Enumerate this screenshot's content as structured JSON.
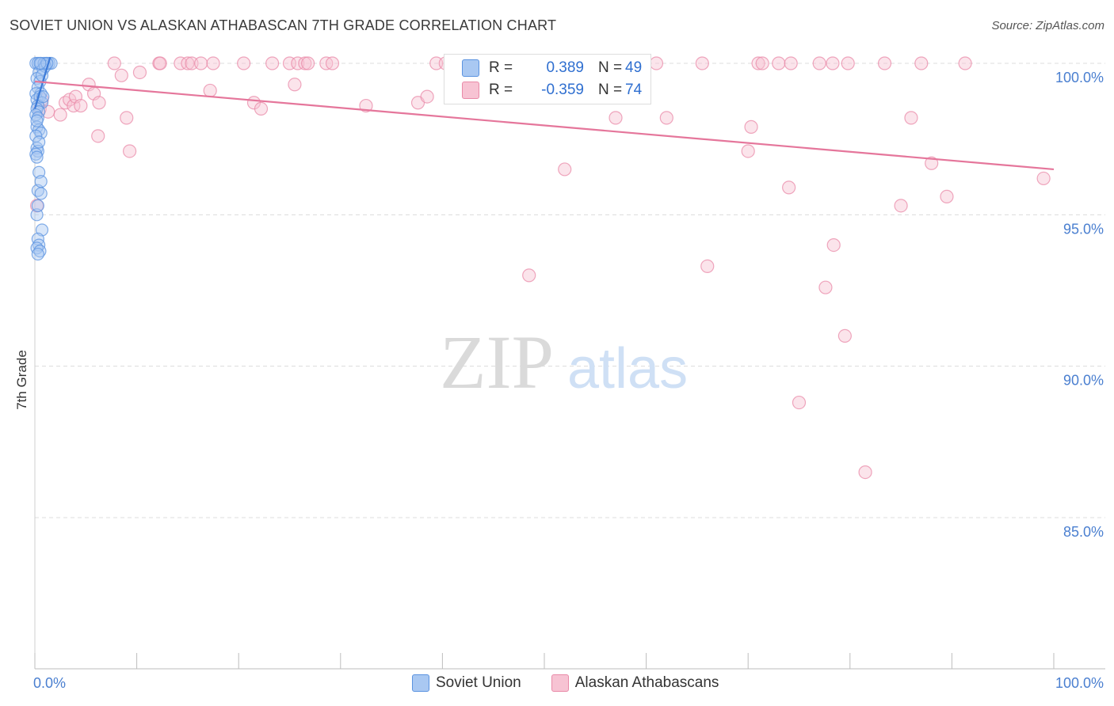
{
  "header": {
    "title": "SOVIET UNION VS ALASKAN ATHABASCAN 7TH GRADE CORRELATION CHART",
    "source": "Source: ZipAtlas.com"
  },
  "watermark": {
    "zip": "ZIP",
    "atlas": "atlas"
  },
  "stats_legend": {
    "r_label": "R =",
    "n_label": "N =",
    "rows": [
      {
        "series": "Soviet Union",
        "r": "0.389",
        "n": "49"
      },
      {
        "series": "Alaskan Athabascans",
        "r": "-0.359",
        "n": "74"
      }
    ]
  },
  "colors": {
    "soviet_fill": "#a9c8f2",
    "soviet_stroke": "#5b93e0",
    "soviet_line": "#3d7bd8",
    "alaskan_fill": "#f7c3d3",
    "alaskan_stroke": "#e98aa8",
    "alaskan_line": "#e5769b",
    "grid": "#dcdcdc",
    "tick_text": "#4a7fd0"
  },
  "chart_data": {
    "type": "scatter",
    "title": "SOVIET UNION VS ALASKAN ATHABASCAN 7TH GRADE CORRELATION CHART",
    "xlabel": "",
    "ylabel": "7th Grade",
    "xlim": [
      0,
      100
    ],
    "ylim": [
      80,
      100.5
    ],
    "x_ticks": [
      "0.0%",
      "100.0%"
    ],
    "y_ticks": [
      {
        "value": 100,
        "label": "100.0%"
      },
      {
        "value": 95,
        "label": "95.0%"
      },
      {
        "value": 90,
        "label": "90.0%"
      },
      {
        "value": 85,
        "label": "85.0%"
      }
    ],
    "grid": true,
    "legend": "bottom",
    "series": [
      {
        "name": "Soviet Union",
        "trend": [
          [
            0,
            98.5
          ],
          [
            1.5,
            100.2
          ]
        ],
        "points": [
          [
            0.1,
            100
          ],
          [
            0.3,
            100
          ],
          [
            0.6,
            100
          ],
          [
            1.1,
            100
          ],
          [
            1.4,
            100
          ],
          [
            1.6,
            100
          ],
          [
            0.9,
            100
          ],
          [
            0.4,
            99.7
          ],
          [
            0.8,
            99.8
          ],
          [
            0.2,
            99.5
          ],
          [
            0.5,
            99.4
          ],
          [
            0.3,
            99.2
          ],
          [
            0.6,
            99.0
          ],
          [
            0.1,
            99.0
          ],
          [
            0.2,
            98.8
          ],
          [
            0.5,
            98.9
          ],
          [
            0.7,
            98.7
          ],
          [
            0.3,
            98.6
          ],
          [
            0.2,
            98.5
          ],
          [
            0.4,
            98.4
          ],
          [
            0.1,
            98.3
          ],
          [
            0.3,
            98.2
          ],
          [
            0.2,
            97.9
          ],
          [
            0.4,
            97.8
          ],
          [
            0.6,
            97.7
          ],
          [
            0.1,
            97.6
          ],
          [
            0.2,
            97.2
          ],
          [
            0.3,
            97.1
          ],
          [
            0.1,
            97.0
          ],
          [
            0.2,
            96.9
          ],
          [
            0.4,
            96.4
          ],
          [
            0.3,
            95.8
          ],
          [
            0.6,
            95.7
          ],
          [
            0.2,
            95.0
          ],
          [
            0.7,
            94.5
          ],
          [
            0.3,
            94.2
          ],
          [
            0.4,
            94.0
          ],
          [
            0.2,
            93.9
          ],
          [
            0.5,
            93.8
          ],
          [
            0.3,
            93.7
          ],
          [
            0.8,
            98.9
          ],
          [
            1.0,
            99.9
          ],
          [
            1.2,
            100
          ],
          [
            0.5,
            100
          ],
          [
            0.7,
            99.6
          ],
          [
            0.2,
            98.1
          ],
          [
            0.4,
            97.4
          ],
          [
            0.6,
            96.1
          ],
          [
            0.3,
            95.3
          ]
        ]
      },
      {
        "name": "Alaskan Athabascans",
        "trend": [
          [
            0,
            99.4
          ],
          [
            100,
            96.5
          ]
        ],
        "points": [
          [
            0.2,
            95.3
          ],
          [
            0.5,
            98.5
          ],
          [
            0.7,
            98.8
          ],
          [
            1.3,
            98.4
          ],
          [
            2.5,
            98.3
          ],
          [
            3.0,
            98.7
          ],
          [
            3.4,
            98.8
          ],
          [
            3.8,
            98.6
          ],
          [
            4.0,
            98.9
          ],
          [
            4.5,
            98.6
          ],
          [
            5.3,
            99.3
          ],
          [
            5.8,
            99.0
          ],
          [
            6.3,
            98.7
          ],
          [
            6.2,
            97.6
          ],
          [
            7.8,
            100
          ],
          [
            8.5,
            99.6
          ],
          [
            9.0,
            98.2
          ],
          [
            9.3,
            97.1
          ],
          [
            10.3,
            99.7
          ],
          [
            12.2,
            100
          ],
          [
            12.3,
            100
          ],
          [
            14.3,
            100
          ],
          [
            15.0,
            100
          ],
          [
            15.4,
            100
          ],
          [
            16.3,
            100
          ],
          [
            17.2,
            99.1
          ],
          [
            17.5,
            100
          ],
          [
            20.5,
            100
          ],
          [
            21.5,
            98.7
          ],
          [
            22.2,
            98.5
          ],
          [
            23.3,
            100
          ],
          [
            25.0,
            100
          ],
          [
            25.5,
            99.3
          ],
          [
            25.8,
            100
          ],
          [
            26.5,
            100
          ],
          [
            26.8,
            100
          ],
          [
            28.6,
            100
          ],
          [
            29.2,
            100
          ],
          [
            32.5,
            98.6
          ],
          [
            37.6,
            98.7
          ],
          [
            38.5,
            98.9
          ],
          [
            39.4,
            100
          ],
          [
            40.3,
            100
          ],
          [
            41.0,
            100
          ],
          [
            48.5,
            93.0
          ],
          [
            52.0,
            96.5
          ],
          [
            57.0,
            98.2
          ],
          [
            61.0,
            100
          ],
          [
            62.0,
            98.2
          ],
          [
            65.5,
            100
          ],
          [
            66.0,
            93.3
          ],
          [
            70.0,
            97.1
          ],
          [
            70.3,
            97.9
          ],
          [
            71.0,
            100
          ],
          [
            71.4,
            100
          ],
          [
            73.0,
            100
          ],
          [
            74.0,
            95.9
          ],
          [
            74.2,
            100
          ],
          [
            75.0,
            88.8
          ],
          [
            77.0,
            100
          ],
          [
            77.6,
            92.6
          ],
          [
            78.3,
            100
          ],
          [
            78.4,
            94.0
          ],
          [
            79.5,
            91.0
          ],
          [
            79.8,
            100
          ],
          [
            81.5,
            86.5
          ],
          [
            83.4,
            100
          ],
          [
            85.0,
            95.3
          ],
          [
            86.0,
            98.2
          ],
          [
            87.0,
            100
          ],
          [
            88.0,
            96.7
          ],
          [
            89.5,
            95.6
          ],
          [
            91.3,
            100
          ],
          [
            99.0,
            96.2
          ]
        ]
      }
    ]
  }
}
